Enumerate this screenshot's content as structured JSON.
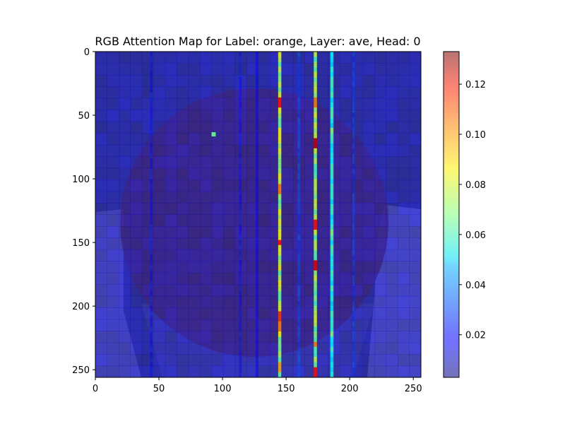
{
  "chart_data": {
    "type": "heatmap",
    "title": "RGB Attention Map for Label: orange, Layer: ave, Head: 0",
    "xlabel": "",
    "ylabel": "",
    "xlim": [
      0,
      256
    ],
    "ylim": [
      256,
      0
    ],
    "x_ticks": [
      0,
      50,
      100,
      150,
      200,
      250
    ],
    "y_ticks": [
      0,
      50,
      100,
      150,
      200,
      250
    ],
    "grid": false,
    "background_image": "photo of an orange on a plate (dark round fruit, plate rim visible lower left and right)",
    "overlay_alpha": 0.5,
    "colormap": "jet",
    "colorbar": {
      "min": 0.003,
      "max": 0.133,
      "ticks": [
        0.02,
        0.04,
        0.06,
        0.08,
        0.1,
        0.12
      ],
      "tick_labels": [
        "0.02",
        "0.04",
        "0.06",
        "0.08",
        "0.10",
        "0.12"
      ],
      "placement": "right"
    },
    "grid_size": 28,
    "notes": "Attention concentrated in vertical columns near x≈145, x≈173 and x≈186; isolated hot spot near (93, 65). Other cells ≈0.005–0.02.",
    "columns": [
      {
        "x": 145,
        "base": 0.075,
        "peaks": [
          {
            "y": 37,
            "v": 0.115
          },
          {
            "y": 105,
            "v": 0.1
          },
          {
            "y": 148,
            "v": 0.115
          },
          {
            "y": 205,
            "v": 0.11
          },
          {
            "y": 215,
            "v": 0.1
          },
          {
            "y": 245,
            "v": 0.095
          }
        ]
      },
      {
        "x": 173,
        "base": 0.07,
        "peaks": [
          {
            "y": 37,
            "v": 0.1
          },
          {
            "y": 69,
            "v": 0.125
          },
          {
            "y": 133,
            "v": 0.115
          },
          {
            "y": 165,
            "v": 0.12
          },
          {
            "y": 228,
            "v": 0.1
          },
          {
            "y": 250,
            "v": 0.115
          }
        ]
      },
      {
        "x": 186,
        "base": 0.055,
        "peaks": [
          {
            "y": 60,
            "v": 0.07
          },
          {
            "y": 140,
            "v": 0.07
          },
          {
            "y": 220,
            "v": 0.07
          }
        ]
      },
      {
        "x": 160,
        "base": 0.03,
        "peaks": []
      },
      {
        "x": 203,
        "base": 0.028,
        "peaks": []
      },
      {
        "x": 44,
        "base": 0.022,
        "peaks": []
      },
      {
        "x": 114,
        "base": 0.022,
        "peaks": []
      },
      {
        "x": 127,
        "base": 0.018,
        "peaks": []
      }
    ],
    "spots": [
      {
        "x": 93,
        "y": 65,
        "v": 0.065
      }
    ]
  }
}
